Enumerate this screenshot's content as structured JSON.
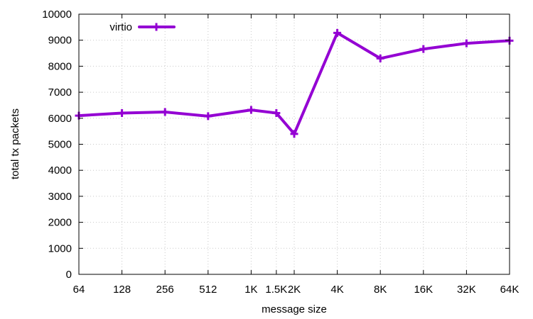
{
  "chart_data": {
    "type": "line",
    "xlabel": "message size",
    "ylabel": "total tx packets",
    "ylim": [
      0,
      10000
    ],
    "yticks": [
      0,
      1000,
      2000,
      3000,
      4000,
      5000,
      6000,
      7000,
      8000,
      9000,
      10000
    ],
    "xticks": [
      {
        "label": "64",
        "log2": 6
      },
      {
        "label": "128",
        "log2": 7
      },
      {
        "label": "256",
        "log2": 8
      },
      {
        "label": "512",
        "log2": 9
      },
      {
        "label": "1K",
        "log2": 10
      },
      {
        "label": "1.5K",
        "log2": 10.585
      },
      {
        "label": "2K",
        "log2": 11
      },
      {
        "label": "4K",
        "log2": 12
      },
      {
        "label": "8K",
        "log2": 13
      },
      {
        "label": "16K",
        "log2": 14
      },
      {
        "label": "32K",
        "log2": 15
      },
      {
        "label": "64K",
        "log2": 16
      }
    ],
    "x_scale": "log2",
    "grid": true,
    "legend_position": "top-left",
    "series": [
      {
        "name": "virtio",
        "color": "#9400d3",
        "points": [
          {
            "x": "64",
            "y": 6100
          },
          {
            "x": "128",
            "y": 6200
          },
          {
            "x": "256",
            "y": 6240
          },
          {
            "x": "512",
            "y": 6080
          },
          {
            "x": "1K",
            "y": 6320
          },
          {
            "x": "1.5K",
            "y": 6200
          },
          {
            "x": "2K",
            "y": 5400
          },
          {
            "x": "4K",
            "y": 9280
          },
          {
            "x": "8K",
            "y": 8300
          },
          {
            "x": "16K",
            "y": 8660
          },
          {
            "x": "32K",
            "y": 8880
          },
          {
            "x": "64K",
            "y": 8980
          }
        ]
      }
    ]
  }
}
